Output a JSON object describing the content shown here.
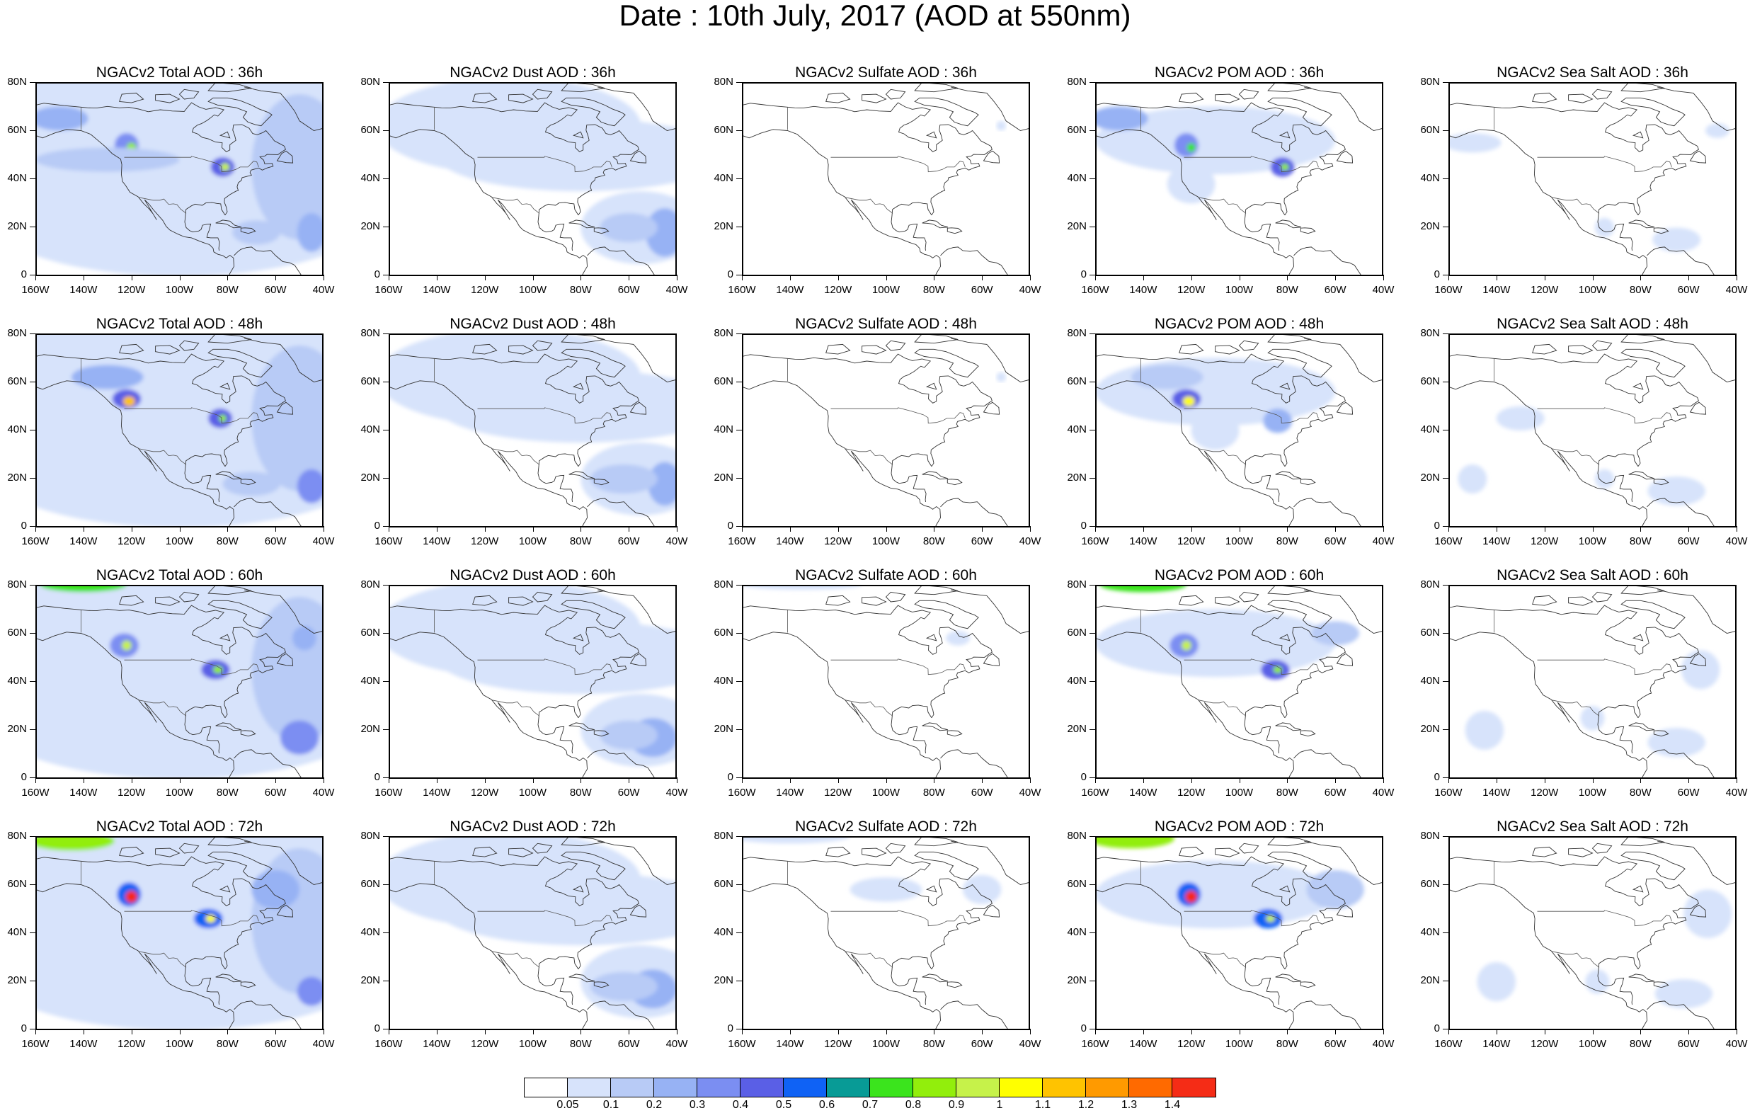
{
  "title": "Date : 10th July, 2017 (AOD at 550nm)",
  "x_ticks": [
    "160W",
    "140W",
    "120W",
    "100W",
    "80W",
    "60W",
    "40W"
  ],
  "y_ticks": [
    "80N",
    "60N",
    "40N",
    "20N",
    "0"
  ],
  "rows": [
    {
      "forecast_hour": "36h",
      "panels": [
        {
          "title": "NGACv2 Total AOD : 36h",
          "species": "total"
        },
        {
          "title": "NGACv2 Dust AOD : 36h",
          "species": "dust"
        },
        {
          "title": "NGACv2 Sulfate AOD : 36h",
          "species": "sulfate"
        },
        {
          "title": "NGACv2 POM AOD : 36h",
          "species": "pom"
        },
        {
          "title": "NGACv2 Sea Salt AOD : 36h",
          "species": "seasalt"
        }
      ]
    },
    {
      "forecast_hour": "48h",
      "panels": [
        {
          "title": "NGACv2 Total AOD : 48h",
          "species": "total"
        },
        {
          "title": "NGACv2 Dust AOD : 48h",
          "species": "dust"
        },
        {
          "title": "NGACv2 Sulfate AOD : 48h",
          "species": "sulfate"
        },
        {
          "title": "NGACv2 POM AOD : 48h",
          "species": "pom"
        },
        {
          "title": "NGACv2 Sea Salt AOD : 48h",
          "species": "seasalt"
        }
      ]
    },
    {
      "forecast_hour": "60h",
      "panels": [
        {
          "title": "NGACv2 Total AOD : 60h",
          "species": "total"
        },
        {
          "title": "NGACv2 Dust AOD : 60h",
          "species": "dust"
        },
        {
          "title": "NGACv2 Sulfate AOD : 60h",
          "species": "sulfate"
        },
        {
          "title": "NGACv2 POM AOD : 60h",
          "species": "pom"
        },
        {
          "title": "NGACv2 Sea Salt AOD : 60h",
          "species": "seasalt"
        }
      ]
    },
    {
      "forecast_hour": "72h",
      "panels": [
        {
          "title": "NGACv2 Total AOD : 72h",
          "species": "total"
        },
        {
          "title": "NGACv2 Dust AOD : 72h",
          "species": "dust"
        },
        {
          "title": "NGACv2 Sulfate AOD : 72h",
          "species": "sulfate"
        },
        {
          "title": "NGACv2 POM AOD : 72h",
          "species": "pom"
        },
        {
          "title": "NGACv2 Sea Salt  AOD : 72h",
          "species": "seasalt"
        }
      ]
    }
  ],
  "colorbar": {
    "labels": [
      "0.05",
      "0.1",
      "0.2",
      "0.3",
      "0.4",
      "0.5",
      "0.6",
      "0.7",
      "0.8",
      "0.9",
      "1",
      "1.1",
      "1.2",
      "1.3",
      "1.4"
    ],
    "colors": [
      "#ffffff",
      "#d7e3fb",
      "#b8cbf6",
      "#97b2f4",
      "#7b8ef2",
      "#5a5fe6",
      "#0f62f5",
      "#089b96",
      "#3be41d",
      "#92ee0c",
      "#c6f24a",
      "#ffff00",
      "#ffc300",
      "#ff9a00",
      "#ff6a00",
      "#f52c16"
    ]
  }
}
